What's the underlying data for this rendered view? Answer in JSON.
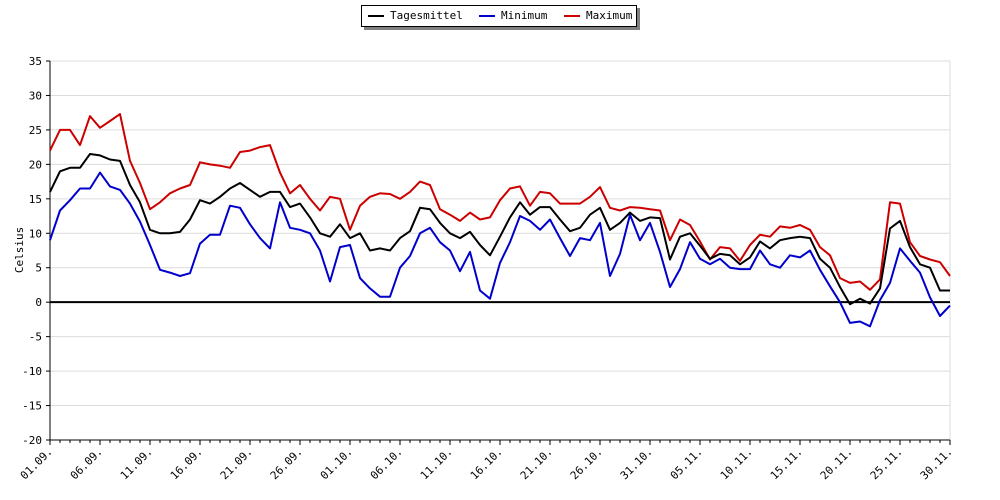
{
  "chart_data": {
    "type": "line",
    "ylabel": "Celsius",
    "ylim": [
      -20,
      35
    ],
    "yticks": [
      35,
      30,
      25,
      20,
      15,
      10,
      5,
      0,
      -5,
      -10,
      -15,
      -20
    ],
    "grid": true,
    "legend_placement": "top-center",
    "x_labels": [
      "01.09.",
      "06.09.",
      "11.09.",
      "16.09.",
      "21.09.",
      "26.09.",
      "01.10.",
      "06.10.",
      "11.10.",
      "16.10.",
      "21.10.",
      "26.10.",
      "31.10.",
      "05.11.",
      "10.11.",
      "15.11.",
      "20.11.",
      "25.11.",
      "30.11."
    ],
    "series": [
      {
        "name": "Tagesmittel",
        "color": "#000000",
        "values": [
          16.0,
          19.0,
          19.5,
          19.5,
          21.5,
          21.3,
          20.7,
          20.5,
          17.0,
          14.5,
          10.5,
          10.0,
          10.0,
          10.2,
          12.0,
          14.8,
          14.3,
          15.3,
          16.5,
          17.3,
          16.3,
          15.3,
          16.0,
          16.0,
          13.8,
          14.3,
          12.3,
          10.0,
          9.5,
          11.3,
          9.3,
          10.0,
          7.5,
          7.8,
          7.5,
          9.3,
          10.3,
          13.7,
          13.5,
          11.5,
          10.0,
          9.3,
          10.2,
          8.3,
          6.8,
          9.5,
          12.3,
          14.5,
          12.7,
          13.8,
          13.8,
          12.0,
          10.3,
          10.8,
          12.7,
          13.7,
          10.5,
          11.5,
          13.0,
          11.8,
          12.3,
          12.2,
          6.2,
          9.5,
          10.0,
          8.2,
          6.3,
          7.0,
          6.8,
          5.5,
          6.5,
          8.8,
          7.8,
          9.0,
          9.3,
          9.5,
          9.3,
          6.3,
          5.0,
          2.2,
          -0.3,
          0.5,
          -0.2,
          2.0,
          10.7,
          11.8,
          8.0,
          5.5,
          5.0,
          1.7,
          1.7
        ]
      },
      {
        "name": "Minimum",
        "color": "#0000cc",
        "values": [
          9.0,
          13.3,
          14.8,
          16.5,
          16.5,
          18.8,
          16.8,
          16.3,
          14.3,
          11.7,
          8.3,
          4.7,
          4.3,
          3.8,
          4.2,
          8.5,
          9.8,
          9.8,
          14.0,
          13.7,
          11.3,
          9.3,
          7.8,
          14.5,
          10.8,
          10.5,
          10.0,
          7.5,
          3.0,
          8.0,
          8.3,
          3.5,
          2.0,
          0.8,
          0.8,
          5.0,
          6.7,
          10.0,
          10.8,
          8.7,
          7.5,
          4.5,
          7.3,
          1.7,
          0.5,
          5.7,
          8.7,
          12.5,
          11.8,
          10.5,
          12.0,
          9.3,
          6.7,
          9.3,
          9.0,
          11.5,
          3.8,
          7.0,
          12.7,
          9.0,
          11.5,
          7.3,
          2.2,
          4.8,
          8.7,
          6.3,
          5.5,
          6.3,
          5.0,
          4.8,
          4.8,
          7.5,
          5.5,
          5.0,
          6.8,
          6.5,
          7.5,
          4.7,
          2.3,
          0.0,
          -3.0,
          -2.8,
          -3.5,
          0.3,
          2.8,
          7.8,
          6.0,
          4.3,
          0.7,
          -2.0,
          -0.5
        ]
      },
      {
        "name": "Maximum",
        "color": "#cc0000",
        "values": [
          22.0,
          25.0,
          25.0,
          22.8,
          27.0,
          25.3,
          26.3,
          27.3,
          20.5,
          17.3,
          13.5,
          14.5,
          15.8,
          16.5,
          17.0,
          20.3,
          20.0,
          19.8,
          19.5,
          21.8,
          22.0,
          22.5,
          22.8,
          18.8,
          15.8,
          17.0,
          15.0,
          13.3,
          15.3,
          15.0,
          10.5,
          14.0,
          15.3,
          15.8,
          15.7,
          15.0,
          16.0,
          17.5,
          17.0,
          13.5,
          12.7,
          11.8,
          13.0,
          12.0,
          12.3,
          14.8,
          16.5,
          16.8,
          14.0,
          16.0,
          15.8,
          14.3,
          14.3,
          14.3,
          15.3,
          16.7,
          13.7,
          13.3,
          13.8,
          13.7,
          13.5,
          13.3,
          9.0,
          12.0,
          11.2,
          8.8,
          6.2,
          8.0,
          7.8,
          6.0,
          8.3,
          9.8,
          9.5,
          11.0,
          10.8,
          11.2,
          10.5,
          8.0,
          6.8,
          3.5,
          2.8,
          3.0,
          1.8,
          3.3,
          14.5,
          14.3,
          8.7,
          6.7,
          6.2,
          5.8,
          3.8
        ]
      }
    ]
  }
}
